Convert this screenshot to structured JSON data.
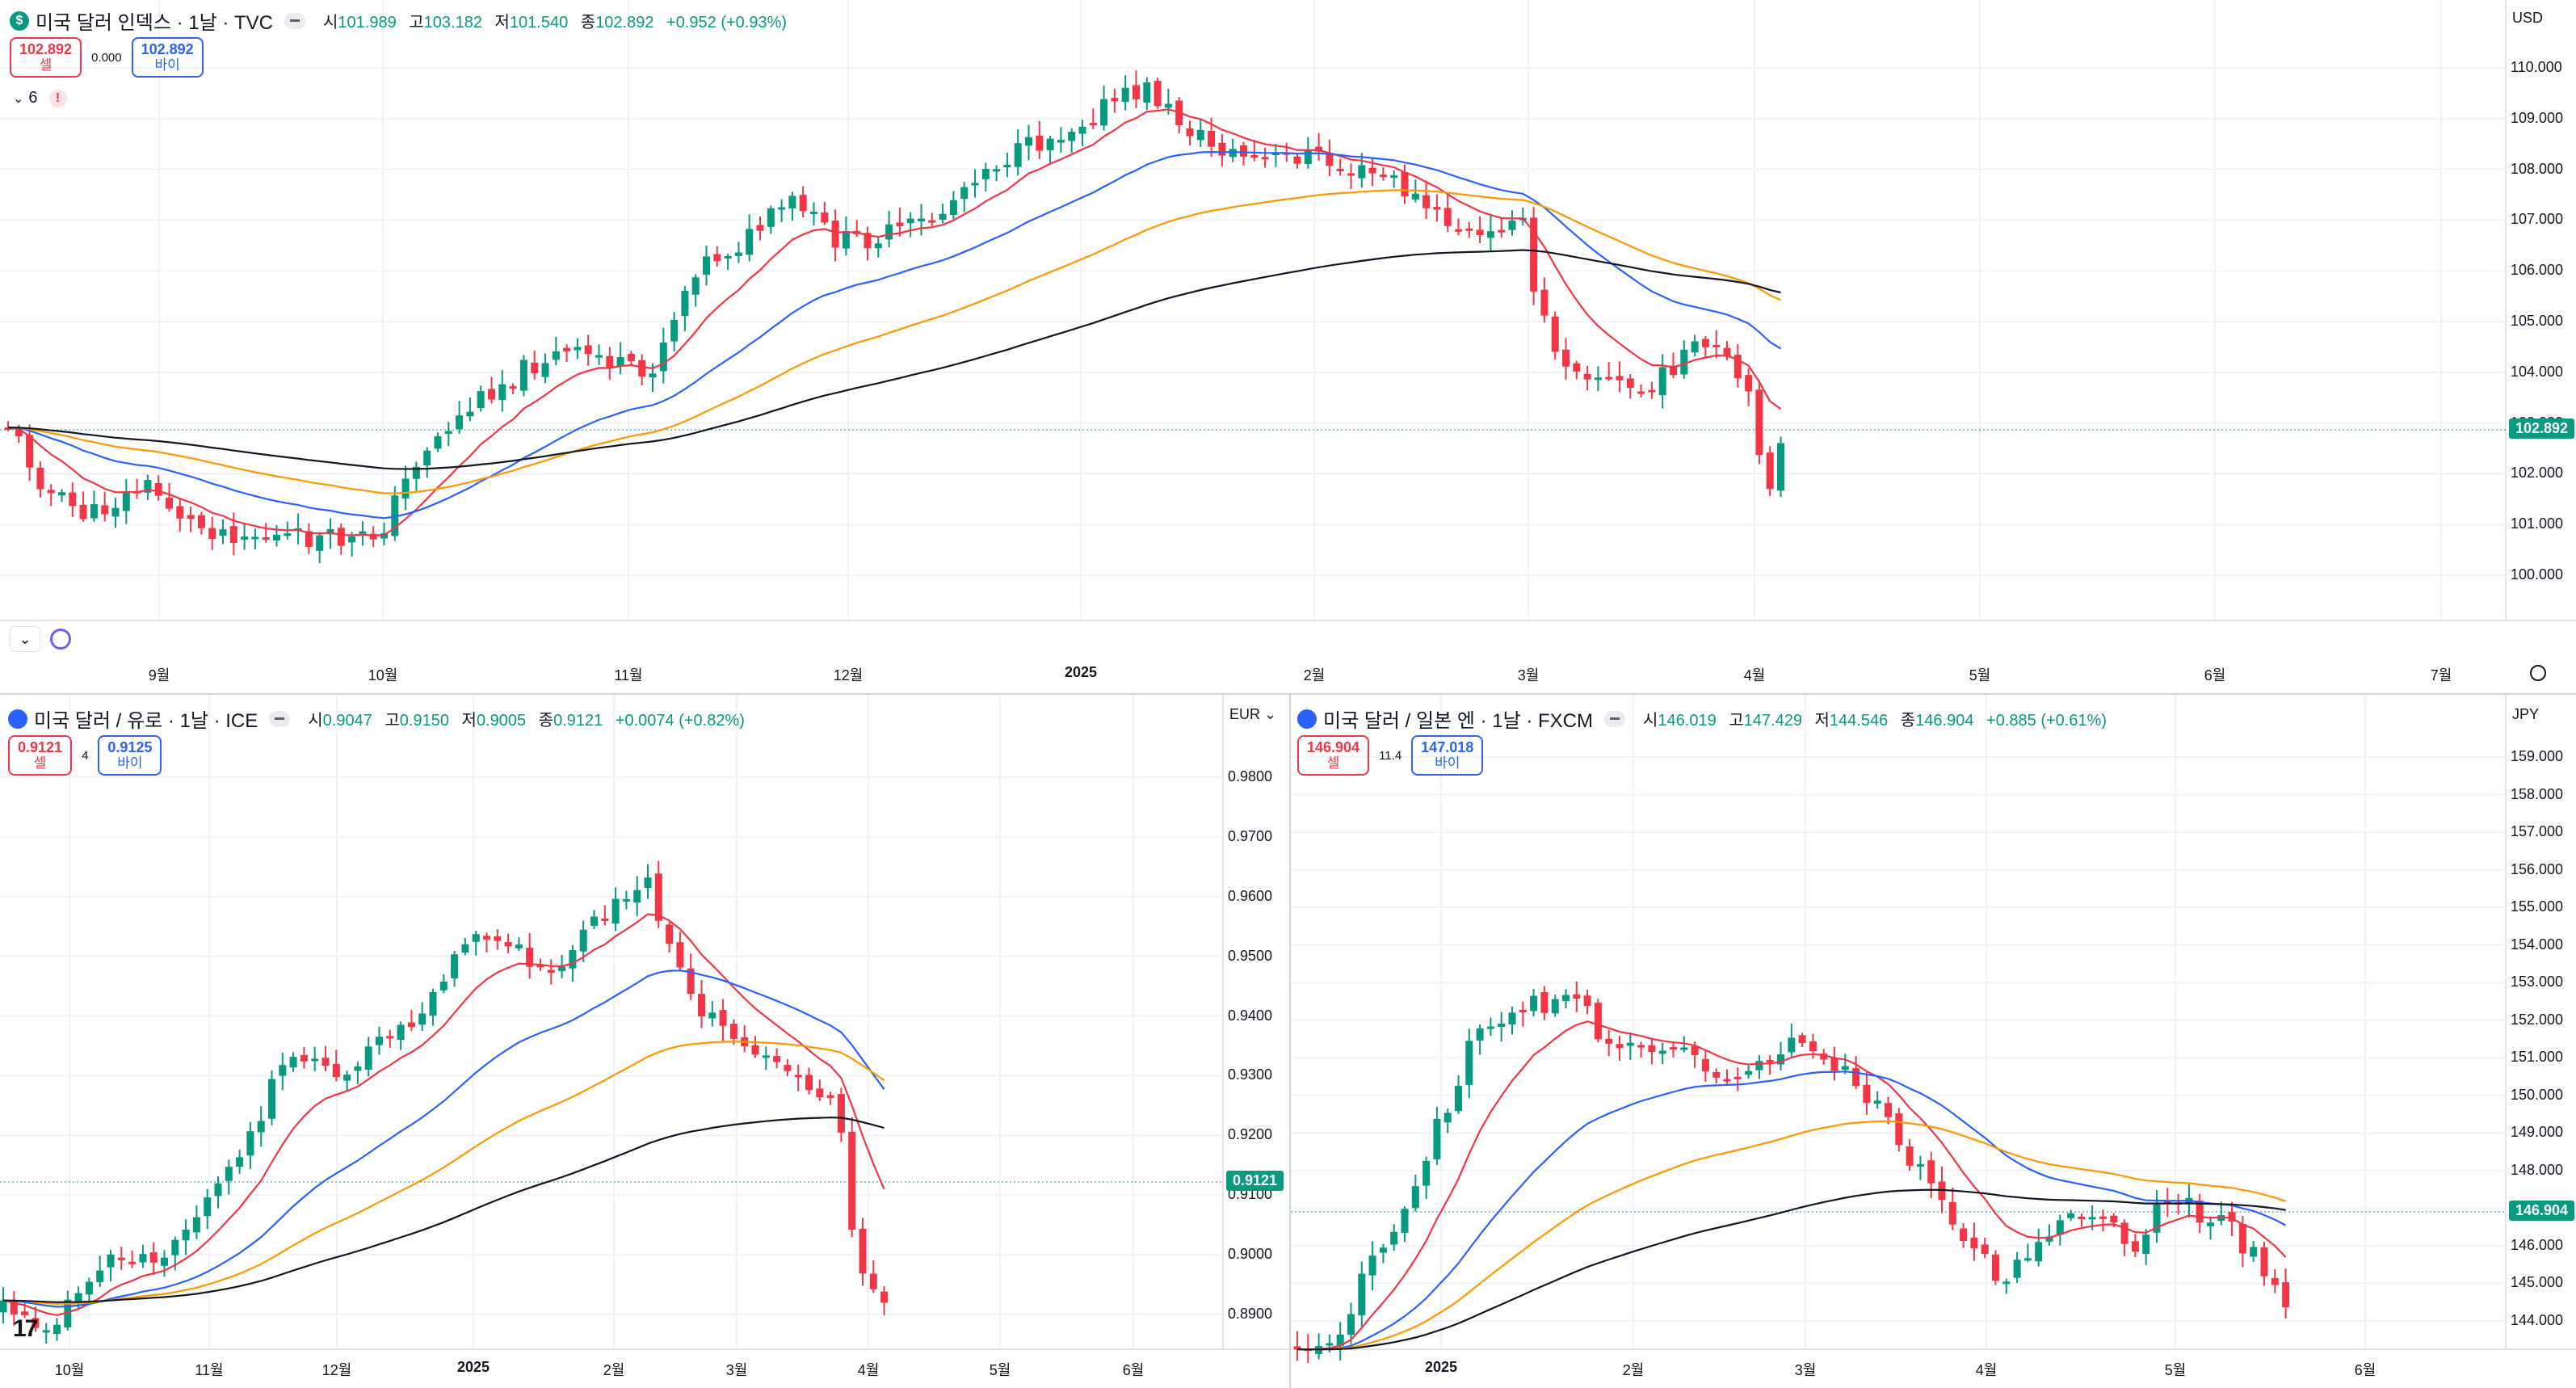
{
  "panels": {
    "dxy": {
      "title": "미국 달러 인덱스 · 1날 · TVC",
      "icon_label": "$",
      "icon_color": "#089981",
      "ohlc": {
        "o_label": "시",
        "o": "101.989",
        "h_label": "고",
        "h": "103.182",
        "l_label": "저",
        "l": "101.540",
        "c_label": "종",
        "c": "102.892",
        "change": "+0.952 (+0.93%)"
      },
      "sell": {
        "price": "102.892",
        "label": "셀"
      },
      "buy": {
        "price": "102.892",
        "label": "바이"
      },
      "spread": "0.000",
      "indicators_count": "6",
      "currency": "USD",
      "last_price": "102.892",
      "y_ticks": [
        "110.000",
        "109.000",
        "108.000",
        "107.000",
        "106.000",
        "105.000",
        "104.000",
        "103.000",
        "102.000",
        "101.000",
        "100.000"
      ],
      "x_ticks": [
        "9월",
        "10월",
        "11월",
        "12월",
        "2025",
        "2월",
        "3월",
        "4월",
        "5월",
        "6월",
        "7월"
      ]
    },
    "eur": {
      "title": "미국 달러 / 유로 · 1날 · ICE",
      "ohlc": {
        "o_label": "시",
        "o": "0.9047",
        "h_label": "고",
        "h": "0.9150",
        "l_label": "저",
        "l": "0.9005",
        "c_label": "종",
        "c": "0.9121",
        "change": "+0.0074 (+0.82%)"
      },
      "sell": {
        "price": "0.9121",
        "label": "셀"
      },
      "buy": {
        "price": "0.9125",
        "label": "바이"
      },
      "spread": "4",
      "currency": "EUR",
      "last_price": "0.9121",
      "y_ticks": [
        "0.9800",
        "0.9700",
        "0.9600",
        "0.9500",
        "0.9400",
        "0.9300",
        "0.9200",
        "0.9100",
        "0.9000",
        "0.8900"
      ],
      "x_ticks": [
        "10월",
        "11월",
        "12월",
        "2025",
        "2월",
        "3월",
        "4월",
        "5월",
        "6월"
      ]
    },
    "jpy": {
      "title": "미국 달러 / 일본 엔 · 1날 · FXCM",
      "ohlc": {
        "o_label": "시",
        "o": "146.019",
        "h_label": "고",
        "h": "147.429",
        "l_label": "저",
        "l": "144.546",
        "c_label": "종",
        "c": "146.904",
        "change": "+0.885 (+0.61%)"
      },
      "sell": {
        "price": "146.904",
        "label": "셀"
      },
      "buy": {
        "price": "147.018",
        "label": "바이"
      },
      "spread": "11.4",
      "currency": "JPY",
      "last_price": "146.904",
      "y_ticks": [
        "159.000",
        "158.000",
        "157.000",
        "156.000",
        "155.000",
        "154.000",
        "153.000",
        "152.000",
        "151.000",
        "150.000",
        "149.000",
        "148.000",
        "147.000",
        "146.000",
        "145.000",
        "144.000"
      ],
      "x_ticks": [
        "2025",
        "2월",
        "3월",
        "4월",
        "5월",
        "6월"
      ]
    }
  },
  "colors": {
    "up": "#089981",
    "down": "#f23645",
    "ema_fast": "#f23645",
    "ema_mid": "#2962ff",
    "ema_slow": "#ff9800",
    "ema_long": "#131722"
  },
  "brand": "17"
}
